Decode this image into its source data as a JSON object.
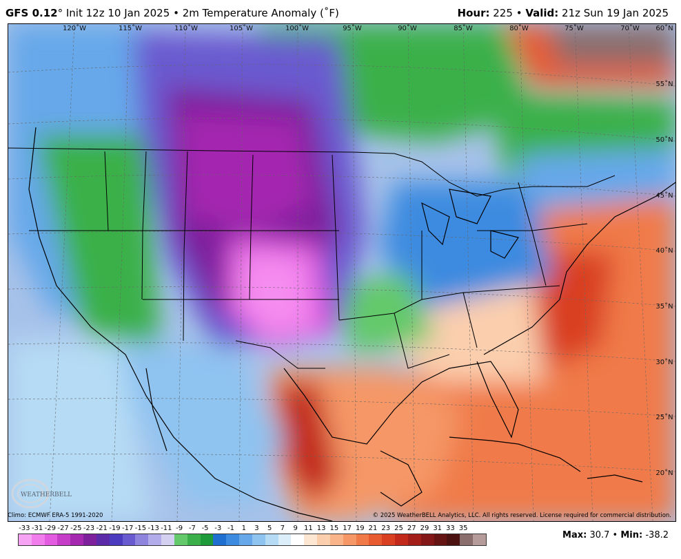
{
  "header": {
    "model": "GFS 0.12",
    "degree": "°",
    "init": "Init 12z 10 Jan 2025",
    "separator": "•",
    "field": "2m Temperature Anomaly (˚F)",
    "hour_label": "Hour:",
    "hour_value": "225",
    "valid_label": "Valid:",
    "valid_value": "21z Sun 19 Jan 2025"
  },
  "map": {
    "longitude_labels": [
      "120˚W",
      "115˚W",
      "110˚W",
      "105˚W",
      "100˚W",
      "95˚W",
      "90˚W",
      "85˚W",
      "80˚W",
      "75˚W",
      "70˚W",
      "60˚N"
    ],
    "latitude_labels": [
      "55˚N",
      "50˚N",
      "45˚N",
      "40˚N",
      "35˚N",
      "30˚N",
      "25˚N",
      "20˚N"
    ],
    "logo_text": "WEATHERBELL",
    "colors": {
      "ocean_neutral": "#a7c2e9",
      "cold_extreme": "#f58cf0",
      "warm_extreme": "#c0251b"
    }
  },
  "footer": {
    "climo": "Climo: ECMWF ERA-5 1991-2020",
    "copyright": "© 2025 WeatherBELL Analytics, LLC. All rights reserved. License required for commercial distribution."
  },
  "colorbar": {
    "ticks": [
      "-33",
      "-31",
      "-29",
      "-27",
      "-25",
      "-23",
      "-21",
      "-19",
      "-17",
      "-15",
      "-13",
      "-11",
      "-9",
      "-7",
      "-5",
      "-3",
      "-1",
      "1",
      "3",
      "5",
      "7",
      "9",
      "11",
      "13",
      "15",
      "17",
      "19",
      "21",
      "23",
      "25",
      "27",
      "29",
      "31",
      "33",
      "35"
    ],
    "colors": [
      "#f7a3f4",
      "#f07deb",
      "#e35be0",
      "#c63ec7",
      "#a428b0",
      "#7e1f9c",
      "#5a2aa8",
      "#4a3bbf",
      "#6a5ad0",
      "#8e84de",
      "#b3aceb",
      "#d4d0f2",
      "#64c96a",
      "#3bb04a",
      "#1f9a3a",
      "#1f6fd1",
      "#3d8be0",
      "#66a8ea",
      "#8fc3f0",
      "#b6dcf5",
      "#dceefa",
      "#ffffff",
      "#fde6d2",
      "#fbcfae",
      "#f9b48a",
      "#f59766",
      "#f07a48",
      "#e85b31",
      "#d94021",
      "#c2291a",
      "#a31e18",
      "#831616",
      "#661313",
      "#4b1010",
      "#8a6e6e",
      "#b69b9b"
    ]
  },
  "stats": {
    "max_label": "Max:",
    "max_value": "30.7",
    "sep": "•",
    "min_label": "Min:",
    "min_value": "-38.2"
  }
}
